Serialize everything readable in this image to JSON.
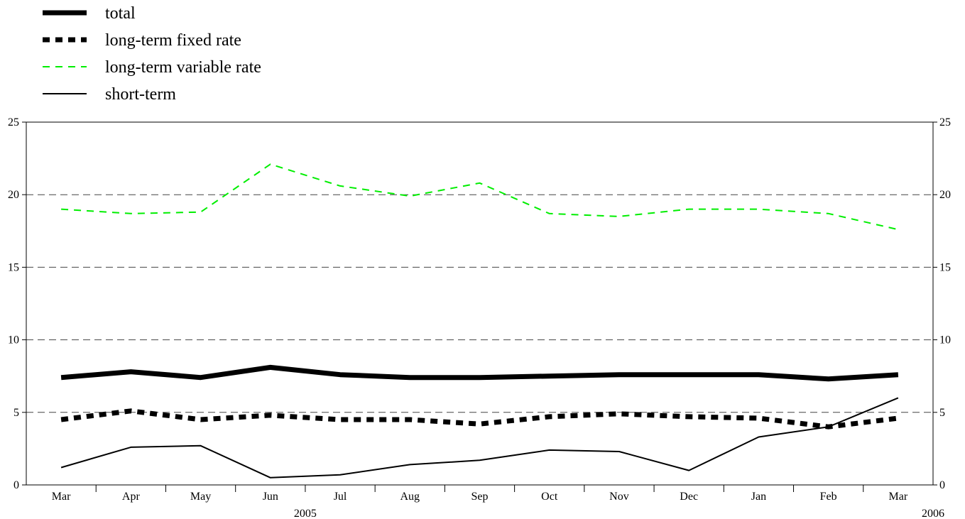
{
  "chart_data": {
    "type": "line",
    "categories": [
      "Mar",
      "Apr",
      "May",
      "Jun",
      "Jul",
      "Aug",
      "Sep",
      "Oct",
      "Nov",
      "Dec",
      "Jan",
      "Feb",
      "Mar"
    ],
    "year_labels": [
      "2005",
      "2006"
    ],
    "ylim": [
      0,
      25
    ],
    "yticks": [
      0,
      5,
      10,
      15,
      20,
      25
    ],
    "grid": true,
    "legend_position": "top-left",
    "series": [
      {
        "name": "total",
        "color": "#000000",
        "style": "solid-thick",
        "values": [
          7.4,
          7.8,
          7.4,
          8.1,
          7.6,
          7.4,
          7.4,
          7.5,
          7.6,
          7.6,
          7.6,
          7.3,
          7.6
        ]
      },
      {
        "name": "long-term fixed rate",
        "color": "#000000",
        "style": "dashed-thick",
        "values": [
          4.5,
          5.1,
          4.5,
          4.8,
          4.5,
          4.5,
          4.2,
          4.7,
          4.9,
          4.7,
          4.6,
          4.0,
          4.6
        ]
      },
      {
        "name": "long-term variable rate",
        "color": "#00ee00",
        "style": "dashed-thin",
        "values": [
          19.0,
          18.7,
          18.8,
          22.1,
          20.6,
          19.9,
          20.8,
          18.7,
          18.5,
          19.0,
          19.0,
          18.7,
          17.6
        ]
      },
      {
        "name": "short-term",
        "color": "#000000",
        "style": "solid-thin",
        "values": [
          1.2,
          2.6,
          2.7,
          0.5,
          0.7,
          1.4,
          1.7,
          2.4,
          2.3,
          1.0,
          3.3,
          4.0,
          6.0
        ]
      }
    ]
  }
}
